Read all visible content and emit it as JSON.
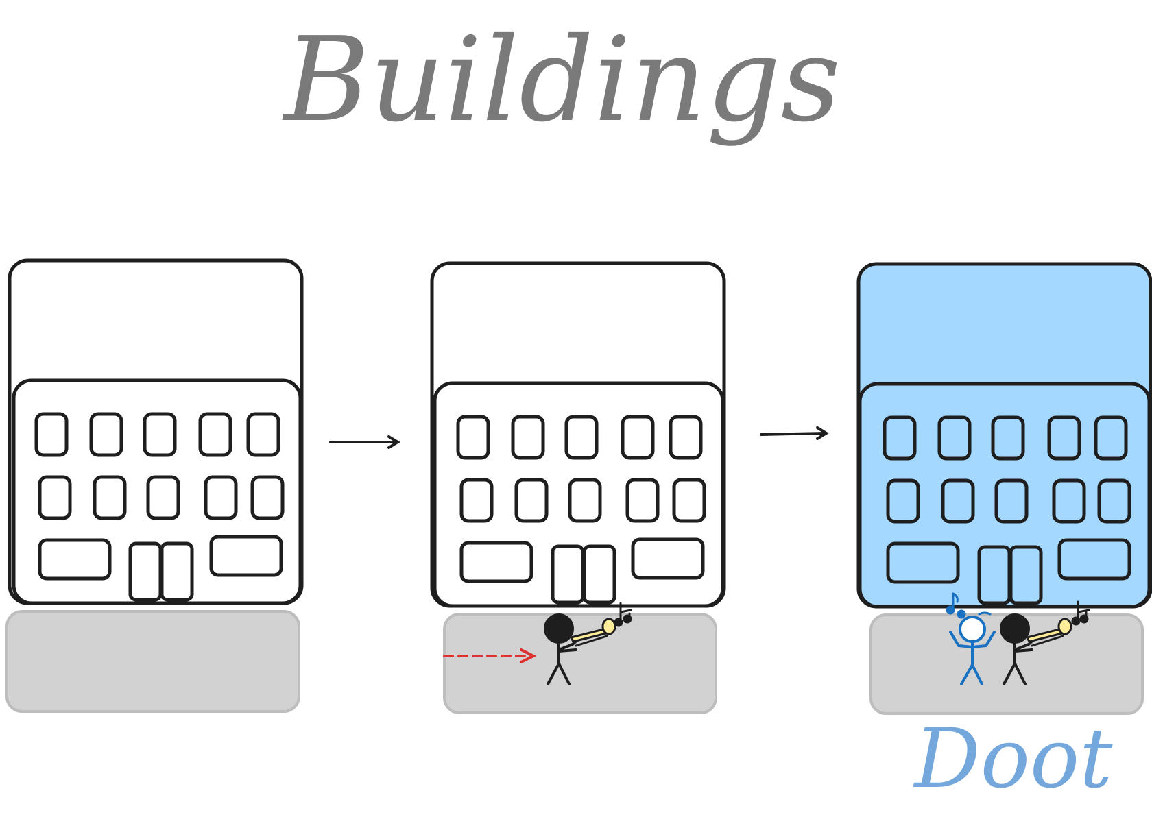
{
  "title": "Buildings",
  "caption": "Doot",
  "panels": [
    {
      "id": "panel-1",
      "building": "plain",
      "has_trombonist": false,
      "has_listener": false
    },
    {
      "id": "panel-2",
      "building": "plain",
      "has_trombonist": true,
      "has_listener": false
    },
    {
      "id": "panel-3",
      "building": "blue",
      "has_trombonist": true,
      "has_listener": true
    }
  ],
  "colors": {
    "ink": "#1e1e1e",
    "title": "#7a7a7a",
    "sidewalk": "#d2d2d2",
    "sidewalk_edge": "#bdbdbd",
    "blue_building": "#a5d8ff",
    "listener": "#1971c2",
    "caption": "#74a8dc",
    "walk_arrow": "#e03131",
    "trombone": "#ffec99"
  }
}
